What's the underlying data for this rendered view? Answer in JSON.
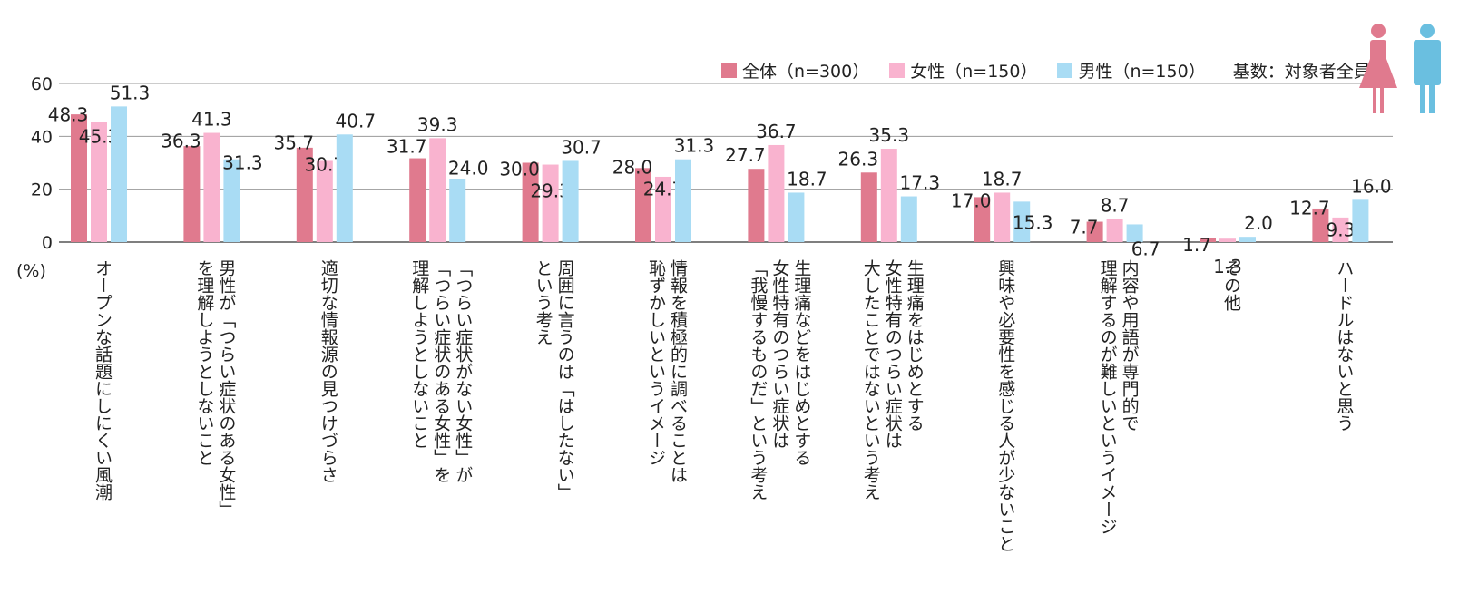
{
  "chart_data": {
    "type": "bar",
    "unit_label": "(%)",
    "ylim": [
      0,
      60
    ],
    "yticks": [
      "0",
      "20",
      "40",
      "60"
    ],
    "grid": true,
    "legend_position": "top-right",
    "base_note": "基数：対象者全員",
    "categories": [
      "オープンな話題にしにくい風潮",
      "男性が「つらい症状のある女性」\nを理解しようとしないこと",
      "適切な情報源の見つけづらさ",
      "「つらい症状がない女性」が\n「つらい症状のある女性」を\n理解しようとしないこと",
      "周囲に言うのは「はしたない」\nという考え",
      "情報を積極的に調べることは\n恥ずかしいというイメージ",
      "生理痛などをはじめとする\n女性特有のつらい症状は\n「我慢するものだ」という考え",
      "生理痛をはじめとする\n女性特有のつらい症状は\n大したことではないという考え",
      "興味や必要性を感じる人が少ないこと",
      "内容や用語が専門的で\n理解するのが難しいというイメージ",
      "その他",
      "ハードルはないと思う"
    ],
    "series": [
      {
        "name": "全体（n=300）",
        "color": "#e07a8e",
        "values": [
          48.3,
          36.3,
          35.7,
          31.7,
          30.0,
          28.0,
          27.7,
          26.3,
          17.0,
          7.7,
          1.7,
          12.7
        ],
        "labels": [
          "48.3",
          "36.3",
          "35.7",
          "31.7",
          "30.0",
          "28.0",
          "27.7",
          "26.3",
          "17.0",
          "7.7",
          "1.7",
          "12.7"
        ]
      },
      {
        "name": "女性（n=150）",
        "color": "#f9b3cf",
        "values": [
          45.3,
          41.3,
          30.7,
          39.3,
          29.3,
          24.7,
          36.7,
          35.3,
          18.7,
          8.7,
          1.3,
          9.3
        ],
        "labels": [
          "45.3",
          "41.3",
          "30.7",
          "39.3",
          "29.3",
          "24.7",
          "36.7",
          "35.3",
          "18.7",
          "8.7",
          "1.3",
          "9.3"
        ]
      },
      {
        "name": "男性（n=150）",
        "color": "#a9dcf4",
        "values": [
          51.3,
          31.3,
          40.7,
          24.0,
          30.7,
          31.3,
          18.7,
          17.3,
          15.3,
          6.7,
          2.0,
          16.0
        ],
        "labels": [
          "51.3",
          "31.3",
          "40.7",
          "24.0",
          "30.7",
          "31.3",
          "18.7",
          "17.3",
          "15.3",
          "6.7",
          "2.0",
          "16.0"
        ]
      }
    ],
    "icon_colors": {
      "female": "#e07a8e",
      "male": "#6abfe0"
    }
  }
}
